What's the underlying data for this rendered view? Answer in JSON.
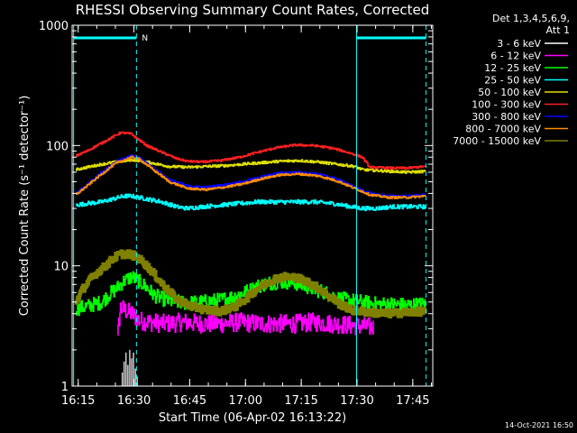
{
  "chart_data": {
    "type": "line",
    "title": "RHESSI Observing Summary Count Rates, Corrected",
    "xlabel": "Start Time (06-Apr-02 16:13:22)",
    "ylabel": "Corrected Count Rate (s⁻¹ detector⁻¹)",
    "x_start_min": 13.37,
    "x_range_min": [
      0,
      97
    ],
    "ylim": [
      1,
      1000
    ],
    "y_scale": "log",
    "x_ticks": [
      {
        "label": "16:15",
        "min": 1.63
      },
      {
        "label": "16:30",
        "min": 16.63
      },
      {
        "label": "16:45",
        "min": 31.63
      },
      {
        "label": "17:00",
        "min": 46.63
      },
      {
        "label": "17:15",
        "min": 61.63
      },
      {
        "label": "17:30",
        "min": 76.63
      },
      {
        "label": "17:45",
        "min": 91.63
      }
    ],
    "y_ticks": [
      {
        "label": "1",
        "v": 1
      },
      {
        "label": "10",
        "v": 10
      },
      {
        "label": "100",
        "v": 100
      },
      {
        "label": "1000",
        "v": 1000
      }
    ],
    "legend_header": [
      "Det 1,3,4,5,6,9,",
      "Att 1"
    ],
    "legend_position": "right",
    "timestamp": "14-Oct-2021 16:50",
    "flag_label": "N",
    "night_intervals_min": [
      [
        0.4,
        17.3
      ],
      [
        76.5,
        95.2
      ]
    ],
    "flag_color": "#00ffff",
    "series": [
      {
        "name": "3 - 6 keV",
        "color": "#ffffff",
        "x": [
          13.5,
          14.0,
          14.5,
          15.0,
          15.5,
          16.0,
          16.5,
          17.0,
          17.5
        ],
        "y": [
          1.3,
          1.6,
          1.9,
          1.5,
          2.0,
          1.7,
          1.9,
          1.4,
          1.2
        ]
      },
      {
        "name": "6 - 12 keV",
        "color": "#ff00ff",
        "x": [
          12.2,
          13.0,
          14.0,
          16.0,
          18.0,
          21.0,
          25.0,
          30.0,
          35.0,
          40.0,
          45.0,
          50.0,
          55.0,
          60.0,
          65.0,
          70.0,
          75.0,
          80.0,
          81.0
        ],
        "y": [
          2.4,
          4.5,
          4.3,
          4.0,
          3.5,
          3.4,
          3.3,
          3.4,
          3.3,
          3.3,
          3.4,
          3.3,
          3.3,
          3.3,
          3.4,
          3.3,
          3.2,
          3.1,
          3.1
        ]
      },
      {
        "name": "12 - 25 keV",
        "color": "#00ff00",
        "x": [
          1.0,
          4.0,
          8.0,
          10.0,
          12.0,
          14.0,
          16.0,
          18.0,
          20.0,
          22.0,
          25.0,
          28.0,
          31.0,
          35.0,
          40.0,
          44.0,
          48.0,
          50.0,
          53.0,
          56.0,
          59.0,
          62.0,
          65.0,
          68.0,
          71.0,
          74.0,
          78.0,
          82.0,
          86.0,
          90.0,
          95.0
        ],
        "y": [
          4.4,
          4.6,
          5.0,
          5.8,
          6.5,
          7.5,
          8.1,
          7.4,
          6.6,
          5.7,
          5.2,
          5.0,
          4.9,
          5.0,
          5.2,
          5.6,
          6.3,
          6.8,
          7.2,
          7.4,
          7.3,
          6.9,
          6.4,
          6.0,
          5.4,
          5.2,
          5.0,
          4.8,
          4.8,
          4.7,
          4.8
        ]
      },
      {
        "name": "25 - 50 keV",
        "color": "#00ffff",
        "x": [
          1.0,
          4.0,
          8.0,
          11.0,
          14.0,
          16.0,
          18.0,
          20.0,
          24.0,
          28.0,
          31.0,
          35.0,
          40.0,
          45.0,
          50.0,
          55.0,
          60.0,
          65.0,
          70.0,
          75.0,
          78.0,
          82.0,
          86.0,
          90.0,
          95.0
        ],
        "y": [
          32,
          33,
          34,
          36,
          38,
          38,
          37,
          36,
          34,
          31,
          30,
          31,
          32,
          33,
          34,
          34,
          34,
          34,
          33,
          31,
          30,
          30,
          31,
          31,
          31
        ]
      },
      {
        "name": "50 - 100 keV",
        "color": "#e0e000",
        "x": [
          1.0,
          4.0,
          8.0,
          12.0,
          16.0,
          18.0,
          22.0,
          26.0,
          31.0,
          36.0,
          41.0,
          46.0,
          51.0,
          56.0,
          61.0,
          66.0,
          71.0,
          76.0,
          78.0,
          82.0,
          86.0,
          90.0,
          95.0
        ],
        "y": [
          63,
          66,
          70,
          73,
          76,
          75,
          71,
          67,
          66,
          67,
          68,
          70,
          72,
          74,
          75,
          73,
          70,
          67,
          63,
          62,
          61,
          60,
          61
        ]
      },
      {
        "name": "100 - 300 keV",
        "color": "#ff2020",
        "x": [
          1.0,
          4.0,
          8.0,
          11.0,
          13.0,
          16.0,
          17.0,
          20.0,
          24.0,
          28.0,
          31.0,
          35.0,
          40.0,
          45.0,
          50.0,
          55.0,
          60.0,
          65.0,
          70.0,
          75.0,
          78.0,
          80.0,
          86.0,
          90.0,
          95.0
        ],
        "y": [
          82,
          90,
          105,
          118,
          128,
          125,
          117,
          100,
          88,
          78,
          74,
          73,
          75,
          80,
          88,
          96,
          101,
          100,
          95,
          86,
          80,
          66,
          65,
          65,
          67
        ]
      },
      {
        "name": "300 - 800 keV",
        "color": "#0000ff",
        "x": [
          1.0,
          4.0,
          8.0,
          12.0,
          16.0,
          18.0,
          22.0,
          26.0,
          31.0,
          36.0,
          41.0,
          46.0,
          51.0,
          56.0,
          61.0,
          66.0,
          71.0,
          76.0,
          80.0,
          85.0,
          90.0,
          95.0
        ],
        "y": [
          40,
          47,
          60,
          74,
          82,
          79,
          64,
          52,
          46,
          45,
          47,
          50,
          55,
          59,
          60,
          58,
          53,
          45,
          40,
          38,
          38,
          39
        ]
      },
      {
        "name": "800 - 7000 keV",
        "color": "#ff8c00",
        "x": [
          1.0,
          4.0,
          8.0,
          12.0,
          16.0,
          18.0,
          22.0,
          26.0,
          31.0,
          36.0,
          41.0,
          46.0,
          51.0,
          56.0,
          61.0,
          66.0,
          71.0,
          76.0,
          80.0,
          85.0,
          90.0,
          95.0
        ],
        "y": [
          39,
          46,
          58,
          72,
          80,
          77,
          62,
          50,
          44,
          43,
          45,
          48,
          53,
          57,
          58,
          56,
          51,
          44,
          39,
          37,
          37,
          38
        ]
      },
      {
        "name": "7000 - 15000 keV",
        "color": "#808000",
        "x": [
          1.0,
          3.0,
          6.0,
          9.0,
          11.0,
          13.0,
          15.0,
          17.0,
          19.0,
          21.0,
          23.0,
          25.0,
          28.0,
          32.0,
          36.0,
          40.0,
          44.0,
          47.0,
          50.0,
          53.0,
          55.0,
          57.0,
          60.0,
          63.0,
          66.0,
          69.0,
          72.0,
          75.0,
          80.0,
          85.0,
          90.0,
          95.0
        ],
        "y": [
          5.0,
          6.5,
          8.4,
          10.0,
          11.5,
          12.5,
          12.6,
          12.0,
          10.8,
          9.3,
          7.8,
          6.6,
          5.3,
          4.6,
          4.3,
          4.2,
          4.6,
          5.4,
          6.5,
          7.4,
          7.9,
          8.1,
          8.0,
          7.4,
          6.6,
          5.6,
          4.8,
          4.3,
          4.1,
          4.0,
          4.1,
          4.2
        ]
      }
    ]
  }
}
